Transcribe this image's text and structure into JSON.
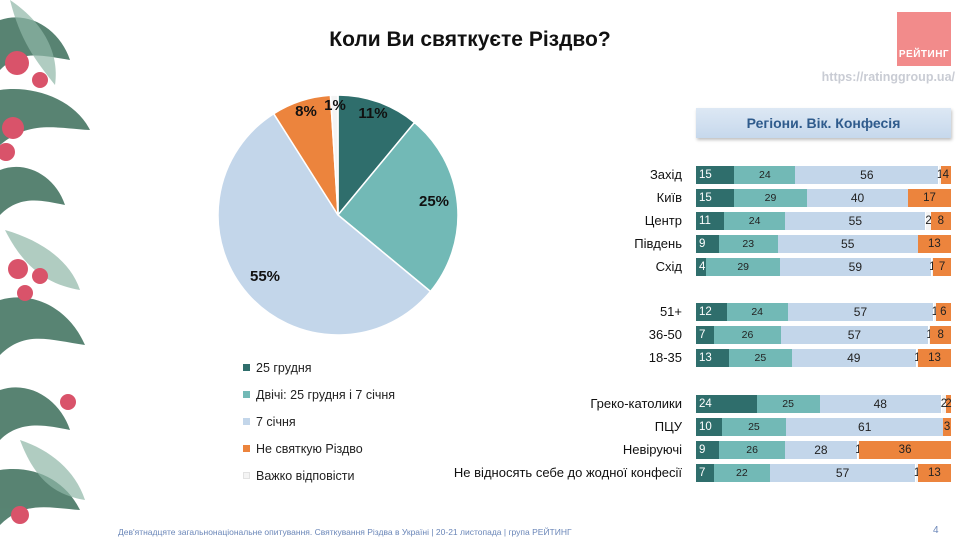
{
  "header": {
    "title": "Коли Ви святкуєте Різдво?",
    "logo_text": "РЕЙТИНГ",
    "url": "https://ratinggroup.ua/"
  },
  "section_label": "Регіони. Вік. Конфесія",
  "colors": {
    "dec25": "#2f6e6c",
    "both": "#72b9b6",
    "jan7": "#c3d6ea",
    "none": "#ec843d",
    "hard": "#f4f4f4"
  },
  "chart_data": [
    {
      "type": "pie",
      "title": "Коли Ви святкуєте Різдво?",
      "legend_position": "bottom-left",
      "slices": [
        {
          "key": "dec25",
          "label": "25 грудня",
          "value": 11,
          "display": "11%"
        },
        {
          "key": "both",
          "label": "Двічі: 25 грудня і 7 січня",
          "value": 25,
          "display": "25%"
        },
        {
          "key": "jan7",
          "label": "7 січня",
          "value": 55,
          "display": "55%"
        },
        {
          "key": "none",
          "label": "Не святкую Різдво",
          "value": 8,
          "display": "8%"
        },
        {
          "key": "hard",
          "label": "Важко відповісти",
          "value": 1,
          "display": "1%"
        }
      ]
    },
    {
      "type": "bar",
      "orientation": "horizontal",
      "stacked": true,
      "xlim": [
        0,
        100
      ],
      "series_keys": [
        "dec25",
        "both",
        "jan7",
        "hard",
        "none"
      ],
      "groups": [
        {
          "rows": [
            {
              "label": "Захід",
              "values": [
                15,
                24,
                56,
                1,
                4
              ]
            },
            {
              "label": "Київ",
              "values": [
                15,
                29,
                40,
                null,
                17
              ]
            },
            {
              "label": "Центр",
              "values": [
                11,
                24,
                55,
                2,
                8
              ]
            },
            {
              "label": "Південь",
              "values": [
                9,
                23,
                55,
                null,
                13
              ]
            },
            {
              "label": "Схід",
              "values": [
                4,
                29,
                59,
                1,
                7
              ]
            }
          ]
        },
        {
          "rows": [
            {
              "label": "51+",
              "values": [
                12,
                24,
                57,
                1,
                6
              ]
            },
            {
              "label": "36-50",
              "values": [
                7,
                26,
                57,
                1,
                8
              ]
            },
            {
              "label": "18-35",
              "values": [
                13,
                25,
                49,
                1,
                13
              ]
            }
          ]
        },
        {
          "rows": [
            {
              "label": "Греко-католики",
              "values": [
                24,
                25,
                48,
                2,
                2
              ]
            },
            {
              "label": "ПЦУ",
              "values": [
                10,
                25,
                61,
                null,
                3
              ]
            },
            {
              "label": "Невіруючі",
              "values": [
                9,
                26,
                28,
                1,
                36
              ]
            },
            {
              "label": "Не відносять себе до жодної конфесії",
              "values": [
                7,
                22,
                57,
                1,
                13
              ]
            }
          ]
        }
      ]
    }
  ],
  "footer": {
    "text": "Дев'ятнадцяте загальнонаціональне опитування. Святкування Різдва в Україні | 20-21 листопада | група РЕЙТИНГ",
    "page": "4"
  }
}
